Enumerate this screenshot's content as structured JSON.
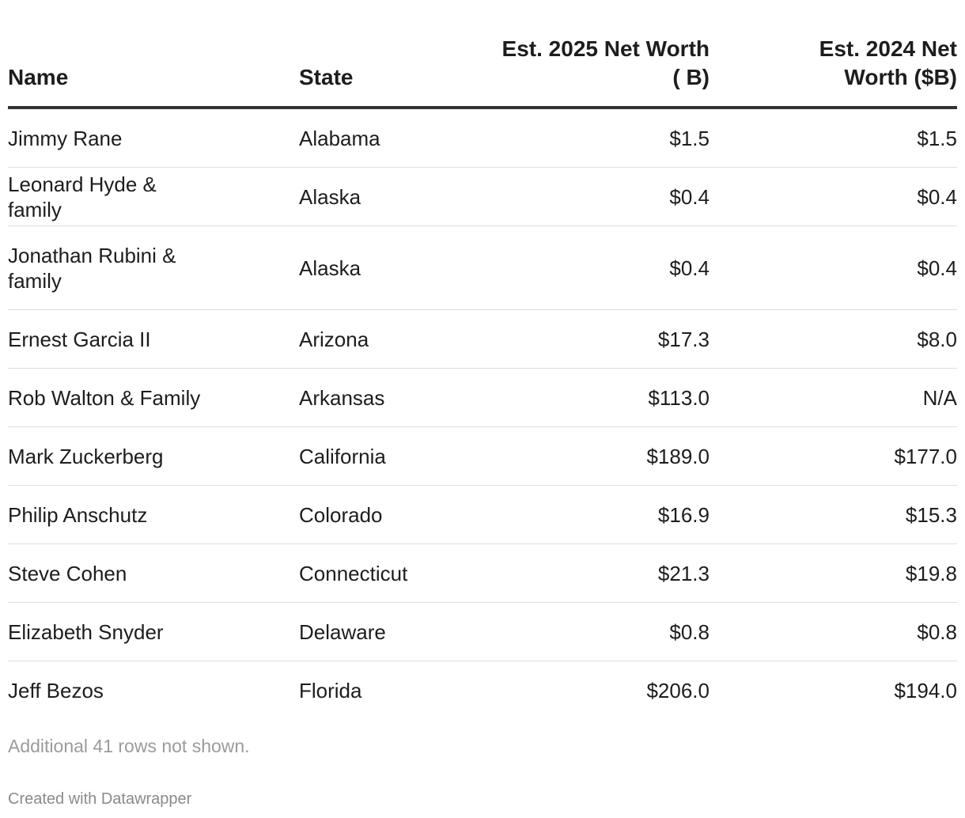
{
  "table": {
    "headers": {
      "name": "Name",
      "state": "State",
      "worth_2025": "Est. 2025 Net Worth ( B)",
      "worth_2024": "Est. 2024 Net Worth ($B)"
    },
    "rows": [
      {
        "name": "Jimmy Rane",
        "state": "Alabama",
        "worth_2025": "$1.5",
        "worth_2024": "$1.5"
      },
      {
        "name": "Leonard Hyde & family",
        "state": "Alaska",
        "worth_2025": "$0.4",
        "worth_2024": "$0.4"
      },
      {
        "name": "Jonathan Rubini & family",
        "state": "Alaska",
        "worth_2025": "$0.4",
        "worth_2024": "$0.4"
      },
      {
        "name": "Ernest Garcia II",
        "state": "Arizona",
        "worth_2025": "$17.3",
        "worth_2024": "$8.0"
      },
      {
        "name": "Rob Walton & Family",
        "state": "Arkansas",
        "worth_2025": "$113.0",
        "worth_2024": "N/A"
      },
      {
        "name": "Mark Zuckerberg",
        "state": "California",
        "worth_2025": "$189.0",
        "worth_2024": "$177.0"
      },
      {
        "name": "Philip Anschutz",
        "state": "Colorado",
        "worth_2025": "$16.9",
        "worth_2024": "$15.3"
      },
      {
        "name": "Steve Cohen",
        "state": "Connecticut",
        "worth_2025": "$21.3",
        "worth_2024": "$19.8"
      },
      {
        "name": "Elizabeth Snyder",
        "state": "Delaware",
        "worth_2025": "$0.8",
        "worth_2024": "$0.8"
      },
      {
        "name": "Jeff Bezos",
        "state": "Florida",
        "worth_2025": "$206.0",
        "worth_2024": "$194.0"
      }
    ]
  },
  "notes": "Additional 41 rows not shown.",
  "credit": "Created with Datawrapper"
}
